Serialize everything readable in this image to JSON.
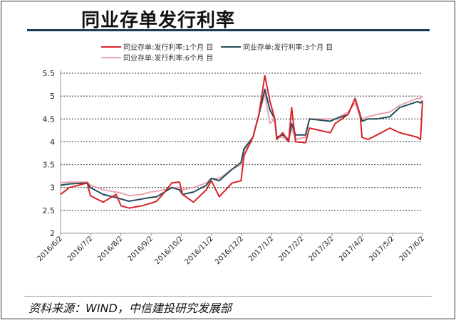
{
  "title": "同业存单发行利率",
  "footer": "资料来源：WIND，中信建投研究发展部",
  "chart_data": {
    "type": "line",
    "title": "同业存单发行利率",
    "xlabel": "",
    "ylabel": "",
    "ylim": [
      2,
      5.5
    ],
    "yticks": [
      "2",
      "2.5",
      "3",
      "3.5",
      "4",
      "4.5",
      "5",
      "5.5"
    ],
    "xticks": [
      "2016/6/2",
      "2016/7/2",
      "2016/8/2",
      "2016/9/2",
      "2016/10/2",
      "2016/11/2",
      "2016/12/2",
      "2017/1/2",
      "2017/2/2",
      "2017/3/2",
      "2017/4/2",
      "2017/5/2",
      "2017/6/2"
    ],
    "grid": "horizontal dashed",
    "legend_position": "top",
    "x": [
      "2016-06-02",
      "2016-06-11",
      "2016-06-29",
      "2016-07-02",
      "2016-07-15",
      "2016-07-28",
      "2016-08-02",
      "2016-08-10",
      "2016-08-23",
      "2016-08-31",
      "2016-09-07",
      "2016-09-15",
      "2016-09-22",
      "2016-09-30",
      "2016-10-03",
      "2016-10-14",
      "2016-10-27",
      "2016-11-01",
      "2016-11-09",
      "2016-11-22",
      "2016-12-01",
      "2016-12-04",
      "2016-12-13",
      "2016-12-19",
      "2016-12-25",
      "2016-12-30",
      "2017-01-04",
      "2017-01-06",
      "2017-01-12",
      "2017-01-18",
      "2017-01-21",
      "2017-01-25",
      "2017-02-04",
      "2017-02-08",
      "2017-03-01",
      "2017-03-06",
      "2017-03-19",
      "2017-03-26",
      "2017-03-31",
      "2017-04-02",
      "2017-04-08",
      "2017-04-17",
      "2017-04-30",
      "2017-05-10",
      "2017-05-28",
      "2017-05-31",
      "2017-06-02"
    ],
    "series": [
      {
        "name": "同业存单:发行利率:1个月 目",
        "color": "#d8232a",
        "values": [
          2.85,
          3.0,
          3.1,
          2.82,
          2.68,
          2.85,
          2.6,
          2.55,
          2.6,
          2.65,
          2.7,
          2.9,
          3.1,
          3.12,
          2.85,
          2.68,
          2.95,
          3.15,
          2.8,
          3.1,
          3.15,
          3.7,
          4.1,
          4.6,
          5.45,
          4.9,
          4.5,
          4.05,
          4.2,
          4.0,
          4.75,
          4.0,
          3.98,
          4.3,
          4.2,
          4.4,
          4.6,
          4.95,
          4.6,
          4.1,
          4.05,
          4.15,
          4.3,
          4.2,
          4.1,
          4.05,
          4.9
        ]
      },
      {
        "name": "同业存单:发行利率:3个月 目",
        "color": "#1f4e5a",
        "values": [
          3.05,
          3.08,
          3.1,
          3.0,
          2.85,
          2.78,
          2.75,
          2.7,
          2.75,
          2.78,
          2.8,
          2.9,
          3.0,
          2.95,
          2.85,
          2.9,
          3.05,
          3.2,
          3.15,
          3.4,
          3.55,
          3.85,
          4.1,
          4.6,
          5.15,
          4.7,
          4.5,
          4.1,
          4.15,
          4.05,
          4.4,
          4.15,
          4.15,
          4.5,
          4.45,
          4.5,
          4.6,
          4.95,
          4.6,
          4.45,
          4.5,
          4.5,
          4.55,
          4.75,
          4.88,
          4.85,
          4.9
        ]
      },
      {
        "name": "同业存单:发行利率:6个月 目",
        "color": "#eaa5ae",
        "values": [
          3.1,
          3.12,
          3.12,
          3.05,
          2.95,
          2.9,
          2.88,
          2.82,
          2.85,
          2.9,
          2.92,
          2.95,
          3.0,
          3.0,
          2.95,
          3.0,
          3.1,
          3.2,
          3.2,
          3.4,
          3.5,
          3.8,
          4.1,
          4.6,
          5.05,
          4.4,
          4.5,
          4.1,
          4.1,
          4.0,
          4.3,
          4.05,
          4.1,
          4.5,
          4.5,
          4.5,
          4.65,
          4.85,
          4.55,
          4.5,
          4.55,
          4.6,
          4.65,
          4.8,
          4.95,
          4.95,
          5.0
        ]
      }
    ]
  }
}
